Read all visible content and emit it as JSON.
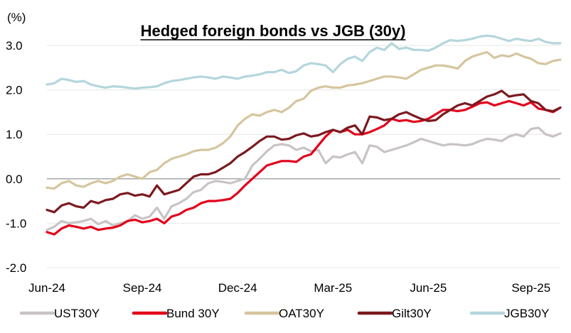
{
  "chart_data": {
    "type": "line",
    "title": "Hedged foreign bonds vs JGB (30y)",
    "unit_label": "(%)",
    "ylim": [
      -2.0,
      3.0
    ],
    "yticks": [
      {
        "value": 3.0,
        "label": "3.0"
      },
      {
        "value": 2.0,
        "label": "2.0"
      },
      {
        "value": 1.0,
        "label": "1.0"
      },
      {
        "value": 0.0,
        "label": "0.0"
      },
      {
        "value": -1.0,
        "label": "-1.0"
      },
      {
        "value": -2.0,
        "label": "-2.0"
      }
    ],
    "xlim": [
      0,
      70
    ],
    "xticks": [
      {
        "index": 0,
        "label": "Jun-24"
      },
      {
        "index": 13,
        "label": "Sep-24"
      },
      {
        "index": 26,
        "label": "Dec-24"
      },
      {
        "index": 39,
        "label": "Mar-25"
      },
      {
        "index": 52,
        "label": "Jun-25"
      },
      {
        "index": 66,
        "label": "Sep-25"
      }
    ],
    "legend_position": "bottom",
    "grid": "horizontal",
    "series": [
      {
        "name": "UST30Y",
        "color": "#c8c3c5",
        "values": [
          -1.15,
          -1.08,
          -0.95,
          -1.0,
          -0.98,
          -0.95,
          -0.9,
          -1.02,
          -0.95,
          -1.05,
          -1.0,
          -0.95,
          -0.82,
          -0.9,
          -0.85,
          -0.65,
          -0.9,
          -0.62,
          -0.55,
          -0.45,
          -0.3,
          -0.25,
          -0.1,
          -0.05,
          -0.07,
          -0.1,
          -0.05,
          0.0,
          0.3,
          0.45,
          0.62,
          0.75,
          0.78,
          0.75,
          0.65,
          0.7,
          0.62,
          0.65,
          0.35,
          0.5,
          0.48,
          0.55,
          0.6,
          0.35,
          0.75,
          0.72,
          0.6,
          0.65,
          0.7,
          0.75,
          0.82,
          0.9,
          0.85,
          0.8,
          0.75,
          0.78,
          0.77,
          0.75,
          0.78,
          0.85,
          0.9,
          0.88,
          0.85,
          0.95,
          1.0,
          0.95,
          1.12,
          1.15,
          1.0,
          0.95,
          1.02
        ]
      },
      {
        "name": "Bund 30Y",
        "color": "#e3001b",
        "values": [
          -1.2,
          -1.25,
          -1.12,
          -1.05,
          -1.08,
          -1.12,
          -1.08,
          -1.15,
          -1.12,
          -1.1,
          -1.05,
          -0.95,
          -0.92,
          -0.98,
          -0.95,
          -0.9,
          -1.0,
          -0.85,
          -0.8,
          -0.7,
          -0.65,
          -0.55,
          -0.5,
          -0.5,
          -0.48,
          -0.45,
          -0.32,
          -0.15,
          0.0,
          0.15,
          0.3,
          0.35,
          0.4,
          0.4,
          0.38,
          0.5,
          0.55,
          0.75,
          0.95,
          1.1,
          1.05,
          1.1,
          1.0,
          1.0,
          1.05,
          1.12,
          1.2,
          1.35,
          1.3,
          1.32,
          1.28,
          1.3,
          1.35,
          1.45,
          1.55,
          1.55,
          1.52,
          1.55,
          1.62,
          1.7,
          1.72,
          1.65,
          1.7,
          1.75,
          1.7,
          1.65,
          1.72,
          1.58,
          1.55,
          1.5,
          1.6
        ]
      },
      {
        "name": "OAT30Y",
        "color": "#d6c59e",
        "values": [
          -0.2,
          -0.22,
          -0.1,
          -0.05,
          -0.15,
          -0.18,
          -0.1,
          -0.05,
          -0.1,
          -0.05,
          0.05,
          0.1,
          0.05,
          0.0,
          0.15,
          0.2,
          0.35,
          0.45,
          0.5,
          0.55,
          0.62,
          0.65,
          0.65,
          0.7,
          0.8,
          0.95,
          1.2,
          1.35,
          1.45,
          1.42,
          1.5,
          1.55,
          1.5,
          1.6,
          1.75,
          1.8,
          1.98,
          2.05,
          2.08,
          2.05,
          2.05,
          2.1,
          2.12,
          2.15,
          2.2,
          2.25,
          2.3,
          2.3,
          2.28,
          2.25,
          2.35,
          2.45,
          2.5,
          2.55,
          2.55,
          2.52,
          2.48,
          2.65,
          2.75,
          2.8,
          2.85,
          2.72,
          2.78,
          2.75,
          2.82,
          2.75,
          2.7,
          2.6,
          2.58,
          2.65,
          2.68
        ]
      },
      {
        "name": "Gilt30Y",
        "color": "#7a1a1f",
        "values": [
          -0.7,
          -0.75,
          -0.6,
          -0.55,
          -0.62,
          -0.65,
          -0.5,
          -0.55,
          -0.48,
          -0.45,
          -0.35,
          -0.32,
          -0.38,
          -0.35,
          -0.4,
          -0.15,
          -0.35,
          -0.3,
          -0.25,
          -0.1,
          0.05,
          0.1,
          0.1,
          0.15,
          0.25,
          0.35,
          0.5,
          0.6,
          0.72,
          0.85,
          0.95,
          0.95,
          0.88,
          0.9,
          0.98,
          1.02,
          0.95,
          0.98,
          1.05,
          1.1,
          1.05,
          1.15,
          1.2,
          1.0,
          1.4,
          1.38,
          1.32,
          1.35,
          1.45,
          1.5,
          1.42,
          1.35,
          1.3,
          1.32,
          1.45,
          1.55,
          1.65,
          1.7,
          1.65,
          1.75,
          1.85,
          1.9,
          1.98,
          1.85,
          1.88,
          1.9,
          1.75,
          1.7,
          1.55,
          1.52,
          1.6
        ]
      },
      {
        "name": "JGB30Y",
        "color": "#b4d6dc",
        "values": [
          2.12,
          2.15,
          2.25,
          2.22,
          2.18,
          2.2,
          2.12,
          2.08,
          2.05,
          2.08,
          2.07,
          2.05,
          2.03,
          2.05,
          2.06,
          2.08,
          2.15,
          2.2,
          2.22,
          2.25,
          2.28,
          2.3,
          2.28,
          2.25,
          2.3,
          2.28,
          2.25,
          2.3,
          2.32,
          2.35,
          2.4,
          2.4,
          2.45,
          2.38,
          2.42,
          2.55,
          2.6,
          2.58,
          2.55,
          2.4,
          2.58,
          2.7,
          2.75,
          2.65,
          2.85,
          2.95,
          2.9,
          3.05,
          2.92,
          2.95,
          2.9,
          2.9,
          2.88,
          2.95,
          3.05,
          3.12,
          3.1,
          3.12,
          3.15,
          3.2,
          3.22,
          3.2,
          3.15,
          3.1,
          3.15,
          3.12,
          3.1,
          3.15,
          3.08,
          3.05,
          3.05
        ]
      }
    ]
  }
}
